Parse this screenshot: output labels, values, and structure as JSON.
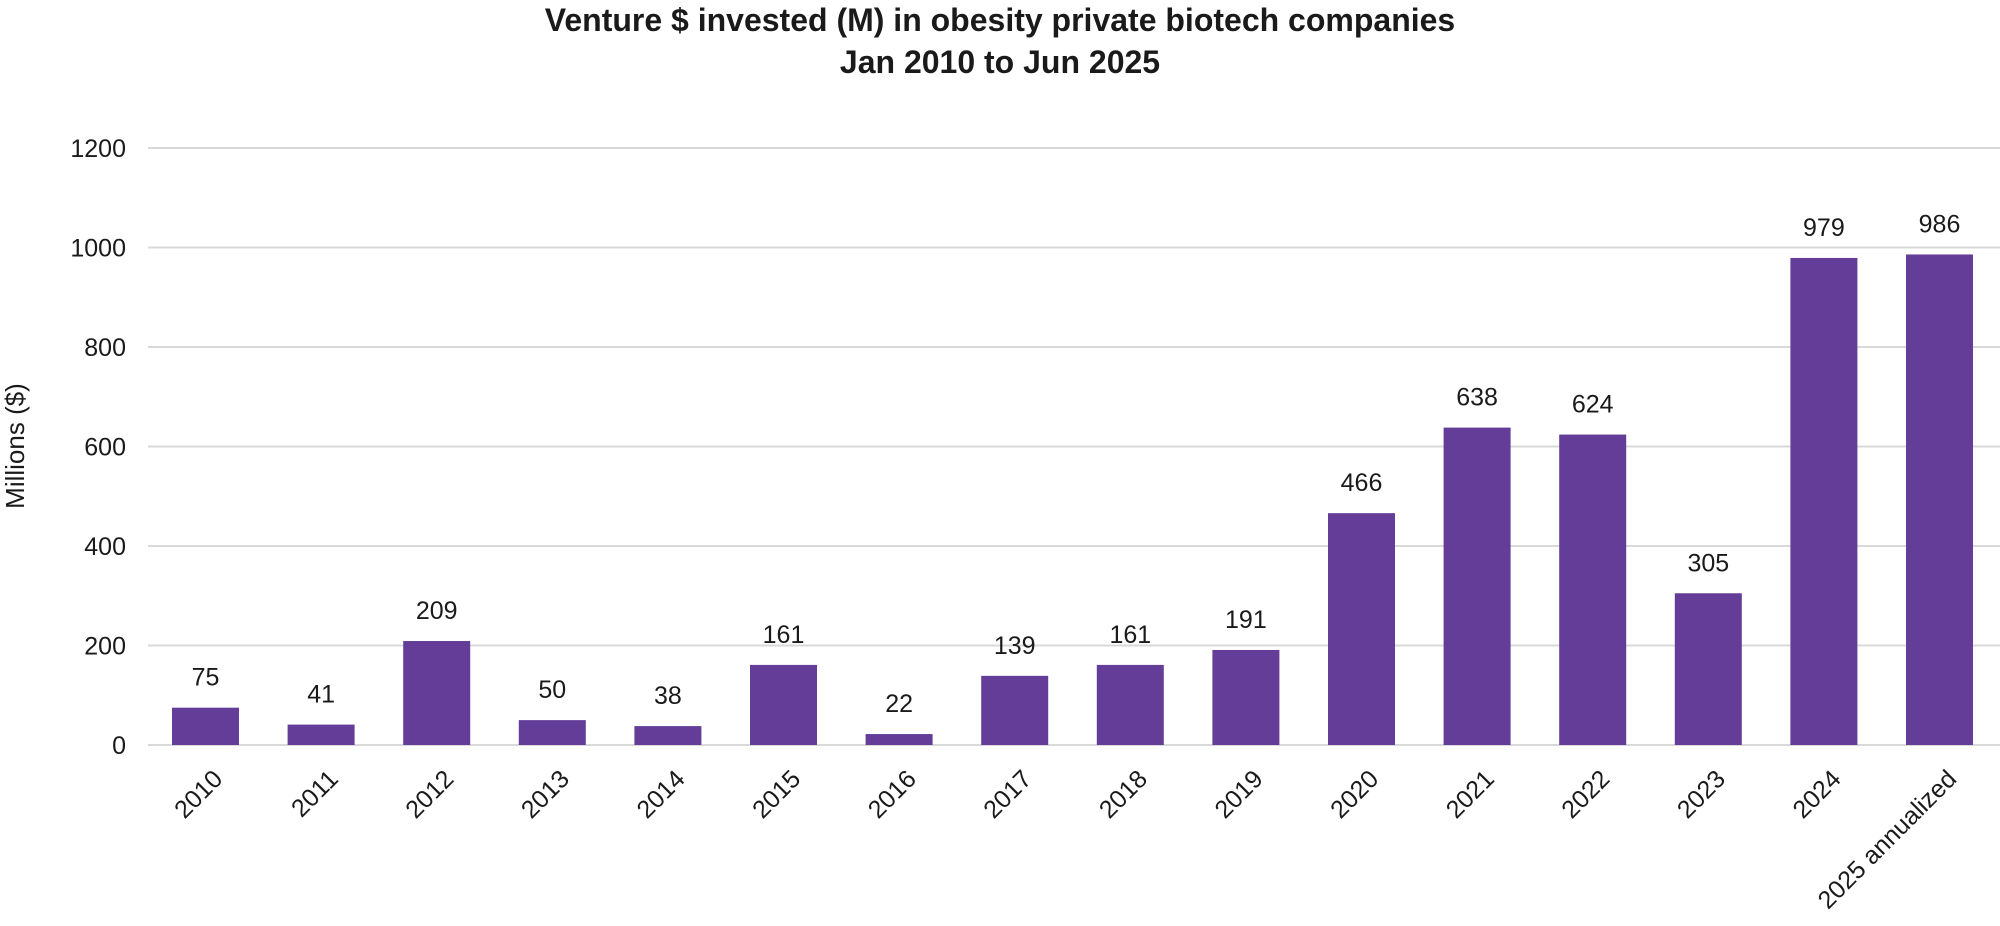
{
  "chart_data": {
    "type": "bar",
    "title": "Venture $ invested (M) in obesity private biotech companies",
    "subtitle": "Jan 2010 to Jun 2025",
    "xlabel": "",
    "ylabel": "Millions ($)",
    "ylim": [
      0,
      1200
    ],
    "yticks": [
      0,
      200,
      400,
      600,
      800,
      1000,
      1200
    ],
    "grid": true,
    "legend": "none",
    "bar_color": "#633d97",
    "gridline_color": "#d9d9d9",
    "categories": [
      "2010",
      "2011",
      "2012",
      "2013",
      "2014",
      "2015",
      "2016",
      "2017",
      "2018",
      "2019",
      "2020",
      "2021",
      "2022",
      "2023",
      "2024",
      "2025 annualized"
    ],
    "values": [
      75,
      41,
      209,
      50,
      38,
      161,
      22,
      139,
      161,
      191,
      466,
      638,
      624,
      305,
      979,
      986
    ],
    "data_labels": [
      "75",
      "41",
      "209",
      "50",
      "38",
      "161",
      "22",
      "139",
      "161",
      "191",
      "466",
      "638",
      "624",
      "305",
      "979",
      "986"
    ]
  }
}
